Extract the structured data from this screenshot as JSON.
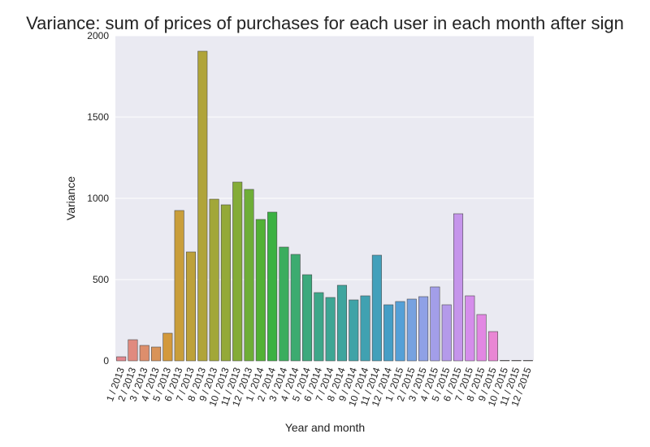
{
  "chart_data": {
    "type": "bar",
    "title": "Variance: sum of prices of purchases for each user in each month after sign",
    "xlabel": "Year and month",
    "ylabel": "Variance",
    "ylim": [
      0,
      2000
    ],
    "yticks": [
      0,
      500,
      1000,
      1500,
      2000
    ],
    "grid": true,
    "categories": [
      "1 / 2013",
      "2 / 2013",
      "3 / 2013",
      "4 / 2013",
      "5 / 2013",
      "6 / 2013",
      "7 / 2013",
      "8 / 2013",
      "9 / 2013",
      "10 / 2013",
      "11 / 2013",
      "12 / 2013",
      "1 / 2014",
      "2 / 2014",
      "3 / 2014",
      "4 / 2014",
      "5 / 2014",
      "6 / 2014",
      "7 / 2014",
      "8 / 2014",
      "9 / 2014",
      "10 / 2014",
      "11 / 2014",
      "12 / 2014",
      "1 / 2015",
      "2 / 2015",
      "3 / 2015",
      "4 / 2015",
      "5 / 2015",
      "6 / 2015",
      "7 / 2015",
      "8 / 2015",
      "9 / 2015",
      "10 / 2015",
      "11 / 2015",
      "12 / 2015"
    ],
    "values": [
      25,
      130,
      95,
      85,
      170,
      925,
      670,
      1905,
      995,
      960,
      1100,
      1055,
      870,
      915,
      700,
      655,
      530,
      420,
      390,
      465,
      375,
      400,
      650,
      345,
      365,
      380,
      395,
      455,
      345,
      905,
      400,
      285,
      180,
      3,
      3,
      3
    ],
    "colors": [
      "#e3878f",
      "#e08a7f",
      "#dd8e6c",
      "#d99358",
      "#d3993b",
      "#c99e3a",
      "#bda13a",
      "#b0a439",
      "#a2a739",
      "#94a938",
      "#84ac37",
      "#6eae37",
      "#52b135",
      "#3bb142",
      "#3bad5e",
      "#3cab70",
      "#3ca97d",
      "#3da789",
      "#3da694",
      "#3ea59e",
      "#3fa3a7",
      "#40a1b1",
      "#42a0bb",
      "#459ec6",
      "#55a0d7",
      "#77a2e0",
      "#8fa1e6",
      "#a39ee9",
      "#b49aea",
      "#c595eb",
      "#d58deb",
      "#e287e3",
      "#e986d4",
      "#ea87c6",
      "#e888b7",
      "#e689a6"
    ]
  }
}
